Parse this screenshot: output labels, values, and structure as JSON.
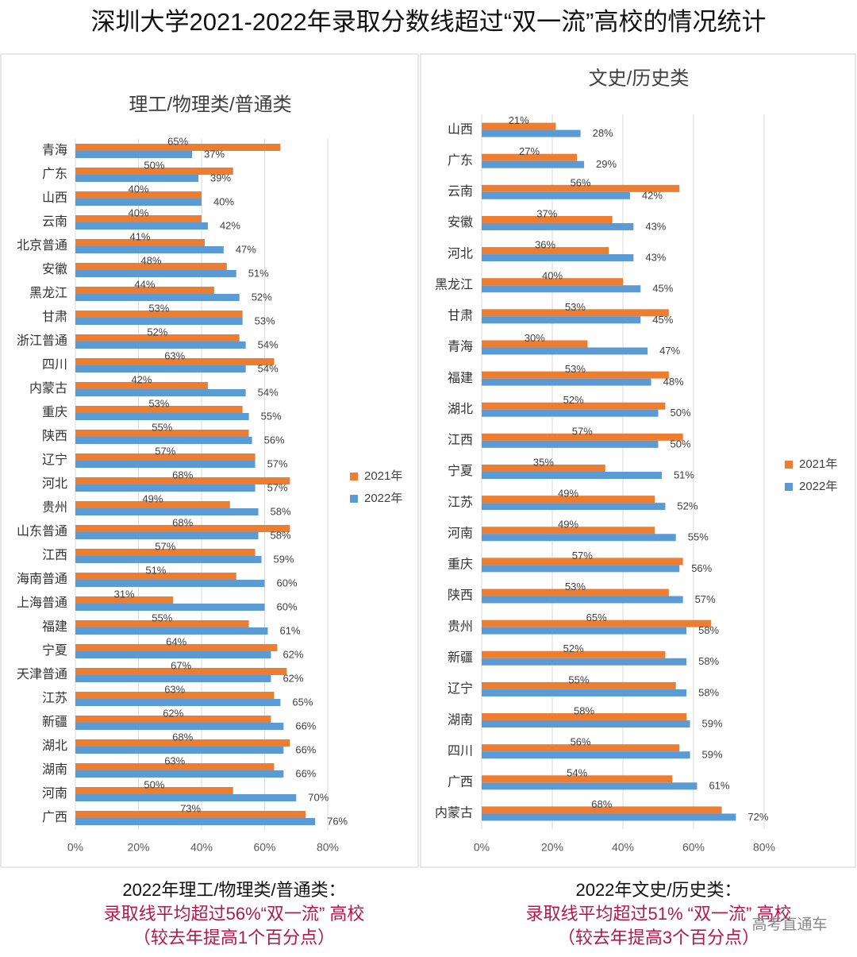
{
  "title": "深圳大学2021-2022年录取分数线超过“双一流”高校的情况统计",
  "chart_data": [
    {
      "type": "bar",
      "orientation": "horizontal",
      "title": "理工/物理类/普通类",
      "categories": [
        "青海",
        "广东",
        "山西",
        "云南",
        "北京普通",
        "安徽",
        "黑龙江",
        "甘肃",
        "浙江普通",
        "四川",
        "内蒙古",
        "重庆",
        "陕西",
        "辽宁",
        "河北",
        "贵州",
        "山东普通",
        "江西",
        "海南普通",
        "上海普通",
        "福建",
        "宁夏",
        "天津普通",
        "江苏",
        "新疆",
        "湖北",
        "湖南",
        "河南",
        "广西"
      ],
      "series": [
        {
          "name": "2021年",
          "color": "#ed7d31",
          "values": [
            65,
            50,
            40,
            40,
            41,
            48,
            44,
            53,
            52,
            63,
            42,
            53,
            55,
            57,
            68,
            49,
            68,
            57,
            51,
            31,
            55,
            64,
            67,
            63,
            62,
            68,
            63,
            50,
            73
          ],
          "value_labels": [
            "65%",
            "50%",
            "40%",
            "40%",
            "41%",
            "48%",
            "44%",
            "53%",
            "52%",
            "63%",
            "42%",
            "53%",
            "55%",
            "57%",
            "68%",
            "49%",
            "68%",
            "57%",
            "51%",
            "31%",
            "55%",
            "64%",
            "67%",
            "63%",
            "62%",
            "68%",
            "63%",
            "50%",
            "73%"
          ]
        },
        {
          "name": "2022年",
          "color": "#5b9bd5",
          "values": [
            37,
            39,
            40,
            42,
            47,
            51,
            52,
            53,
            54,
            54,
            54,
            55,
            56,
            57,
            57,
            58,
            58,
            59,
            60,
            60,
            61,
            62,
            62,
            65,
            66,
            66,
            66,
            70,
            76
          ],
          "value_labels": [
            "37%",
            "39%",
            "40%",
            "42%",
            "47%",
            "51%",
            "52%",
            "53%",
            "54%",
            "54%",
            "54%",
            "55%",
            "56%",
            "57%",
            "57%",
            "58%",
            "58%",
            "59%",
            "60%",
            "60%",
            "61%",
            "62%",
            "62%",
            "65%",
            "66%",
            "66%",
            "66%",
            "70%",
            "76%"
          ]
        }
      ],
      "xlim": [
        0,
        80
      ],
      "xticks": [
        {
          "value": 0,
          "label": "0%"
        },
        {
          "value": 20,
          "label": "20%"
        },
        {
          "value": 40,
          "label": "40%"
        },
        {
          "value": 60,
          "label": "60%"
        },
        {
          "value": 80,
          "label": "80%"
        }
      ],
      "grid": true,
      "legend": "right"
    },
    {
      "type": "bar",
      "orientation": "horizontal",
      "title": "文史/历史类",
      "categories": [
        "山西",
        "广东",
        "云南",
        "安徽",
        "河北",
        "黑龙江",
        "甘肃",
        "青海",
        "福建",
        "湖北",
        "江西",
        "宁夏",
        "江苏",
        "河南",
        "重庆",
        "陕西",
        "贵州",
        "新疆",
        "辽宁",
        "湖南",
        "四川",
        "广西",
        "内蒙古"
      ],
      "series": [
        {
          "name": "2021年",
          "color": "#ed7d31",
          "values": [
            21,
            27,
            56,
            37,
            36,
            40,
            53,
            30,
            53,
            52,
            57,
            35,
            49,
            49,
            57,
            53,
            65,
            52,
            55,
            58,
            56,
            54,
            68
          ],
          "value_labels": [
            "21%",
            "27%",
            "56%",
            "37%",
            "36%",
            "40%",
            "53%",
            "30%",
            "53%",
            "52%",
            "57%",
            "35%",
            "49%",
            "49%",
            "57%",
            "53%",
            "65%",
            "52%",
            "55%",
            "58%",
            "56%",
            "54%",
            "68%"
          ]
        },
        {
          "name": "2022年",
          "color": "#5b9bd5",
          "values": [
            28,
            29,
            42,
            43,
            43,
            45,
            45,
            47,
            48,
            50,
            50,
            51,
            52,
            55,
            56,
            57,
            58,
            58,
            58,
            59,
            59,
            61,
            72
          ],
          "value_labels": [
            "28%",
            "29%",
            "42%",
            "43%",
            "43%",
            "45%",
            "45%",
            "47%",
            "48%",
            "50%",
            "50%",
            "51%",
            "52%",
            "55%",
            "56%",
            "57%",
            "58%",
            "58%",
            "58%",
            "59%",
            "59%",
            "61%",
            "72%"
          ]
        }
      ],
      "xlim": [
        0,
        80
      ],
      "xticks": [
        {
          "value": 0,
          "label": "0%"
        },
        {
          "value": 20,
          "label": "20%"
        },
        {
          "value": 40,
          "label": "40%"
        },
        {
          "value": 60,
          "label": "60%"
        },
        {
          "value": 80,
          "label": "80%"
        }
      ],
      "grid": true,
      "legend": "right"
    }
  ],
  "summaries": [
    [
      "2022年理工/物理类/普通类：",
      "录取线平均超过56%“双一流” 高校",
      "（较去年提高1个百分点）"
    ],
    [
      "2022年文史/历史类：",
      "录取线平均超过51% “双一流” 高校",
      "（较去年提高3个百分点）"
    ]
  ],
  "watermark": "高考直通车"
}
